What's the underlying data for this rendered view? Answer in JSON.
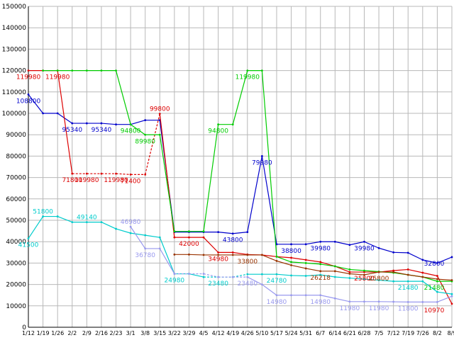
{
  "chart_data": {
    "type": "line",
    "title": "",
    "xlabel": "",
    "ylabel": "",
    "ylim": [
      0,
      150000
    ],
    "y_tick_step": 10000,
    "grid": true,
    "grid_color": "#b8b8b8",
    "axis_color": "#000000",
    "background_color": "#ffffff",
    "x_tick_labels": [
      "1/12",
      "1/19",
      "1/26",
      "2/2",
      "2/9",
      "2/16",
      "2/23",
      "3/1",
      "3/8",
      "3/15",
      "3/22",
      "3/29",
      "4/5",
      "4/12",
      "4/19",
      "4/26",
      "5/10",
      "5/17",
      "5/24",
      "5/31",
      "6/7",
      "6/14",
      "6/21",
      "6/28",
      "7/5",
      "7/12",
      "7/19",
      "7/26",
      "8/2",
      "8/9"
    ],
    "series": [
      {
        "name": "series-blue",
        "color": "#0000cc",
        "dash_ranges": [],
        "values": [
          108800,
          100000,
          100000,
          95340,
          95340,
          95340,
          94800,
          94800,
          96800,
          96800,
          44500,
          44500,
          44500,
          44500,
          43800,
          44500,
          79980,
          38800,
          38800,
          38800,
          39980,
          39980,
          38500,
          39980,
          37000,
          35000,
          34800,
          31500,
          30000,
          32800
        ]
      },
      {
        "name": "series-red",
        "color": "#dd0000",
        "dash_ranges": [
          [
            3,
            9
          ]
        ],
        "values": [
          119980,
          119980,
          119980,
          71800,
          71800,
          71800,
          71800,
          71400,
          71400,
          99800,
          42000,
          42000,
          42000,
          34980,
          34980,
          34000,
          33800,
          33000,
          32500,
          31500,
          30500,
          28500,
          25800,
          25800,
          25800,
          26500,
          27000,
          25500,
          24000,
          10970
        ]
      },
      {
        "name": "series-green",
        "color": "#00cc00",
        "dash_ranges": [],
        "values": [
          null,
          119980,
          119980,
          119980,
          119980,
          119980,
          119980,
          94800,
          89980,
          89980,
          44800,
          44800,
          44800,
          94800,
          94800,
          119980,
          119980,
          33000,
          30500,
          30000,
          29500,
          28500,
          27000,
          26500,
          26000,
          25500,
          24500,
          23500,
          21480,
          21480
        ]
      },
      {
        "name": "series-cyan",
        "color": "#00cccc",
        "dash_ranges": [
          [
            12,
            15
          ]
        ],
        "values": [
          41500,
          51800,
          51800,
          49140,
          49140,
          49140,
          46000,
          44000,
          43000,
          42000,
          24980,
          24980,
          23480,
          23480,
          23480,
          24780,
          24780,
          24780,
          24200,
          24000,
          24500,
          23500,
          23000,
          22500,
          22000,
          21480,
          21480,
          21480,
          16500,
          15500
        ]
      },
      {
        "name": "series-purple",
        "color": "#9999ee",
        "dash_ranges": [
          [
            10,
            15
          ]
        ],
        "values": [
          null,
          null,
          null,
          null,
          null,
          null,
          null,
          46980,
          36780,
          36780,
          24980,
          24980,
          24980,
          23480,
          23480,
          23480,
          20000,
          14980,
          14980,
          14980,
          14980,
          13500,
          11980,
          11980,
          11980,
          11900,
          11800,
          11800,
          11800,
          14500
        ]
      },
      {
        "name": "series-darkred",
        "color": "#993300",
        "dash_ranges": [],
        "values": [
          null,
          null,
          null,
          null,
          null,
          null,
          null,
          null,
          null,
          null,
          34000,
          34000,
          33800,
          33800,
          33800,
          33800,
          33800,
          31000,
          29000,
          27500,
          26218,
          26218,
          25000,
          24500,
          25800,
          25800,
          24500,
          23500,
          22500,
          22000
        ]
      }
    ],
    "point_labels": [
      {
        "text": "108800",
        "s": 0,
        "i": 0,
        "pos": "below"
      },
      {
        "text": "119980",
        "s": 1,
        "i": 0,
        "pos": "below"
      },
      {
        "text": "119980",
        "s": 1,
        "i": 2,
        "pos": "below"
      },
      {
        "text": "119980",
        "s": 1,
        "i": 4,
        "pos": "below"
      },
      {
        "text": "119980",
        "s": 1,
        "i": 6,
        "pos": "below"
      },
      {
        "text": "95340",
        "s": 0,
        "i": 3,
        "pos": "below"
      },
      {
        "text": "95340",
        "s": 0,
        "i": 5,
        "pos": "below"
      },
      {
        "text": "94800",
        "s": 2,
        "i": 7,
        "pos": "below"
      },
      {
        "text": "89980",
        "s": 2,
        "i": 8,
        "pos": "below"
      },
      {
        "text": "99800",
        "s": 1,
        "i": 9,
        "pos": "above"
      },
      {
        "text": "71800",
        "s": 1,
        "i": 3,
        "pos": "below"
      },
      {
        "text": "71400",
        "s": 1,
        "i": 7,
        "pos": "below"
      },
      {
        "text": "94800",
        "s": 2,
        "i": 13,
        "pos": "below"
      },
      {
        "text": "119980",
        "s": 2,
        "i": 15,
        "pos": "below"
      },
      {
        "text": "79980",
        "s": 0,
        "i": 16,
        "pos": "below"
      },
      {
        "text": "43800",
        "s": 0,
        "i": 14,
        "pos": "below"
      },
      {
        "text": "42000",
        "s": 1,
        "i": 11,
        "pos": "below"
      },
      {
        "text": "41500",
        "s": 3,
        "i": 0,
        "pos": "below"
      },
      {
        "text": "51800",
        "s": 3,
        "i": 1,
        "pos": "above"
      },
      {
        "text": "49140",
        "s": 3,
        "i": 4,
        "pos": "above"
      },
      {
        "text": "46980",
        "s": 4,
        "i": 7,
        "pos": "above"
      },
      {
        "text": "36780",
        "s": 4,
        "i": 8,
        "pos": "below"
      },
      {
        "text": "24980",
        "s": 3,
        "i": 10,
        "pos": "below"
      },
      {
        "text": "34980",
        "s": 1,
        "i": 13,
        "pos": "below"
      },
      {
        "text": "33800",
        "s": 5,
        "i": 15,
        "pos": "below"
      },
      {
        "text": "23480",
        "s": 3,
        "i": 13,
        "pos": "below"
      },
      {
        "text": "23480",
        "s": 4,
        "i": 15,
        "pos": "below"
      },
      {
        "text": "38800",
        "s": 0,
        "i": 18,
        "pos": "below"
      },
      {
        "text": "24780",
        "s": 3,
        "i": 17,
        "pos": "below"
      },
      {
        "text": "14980",
        "s": 4,
        "i": 17,
        "pos": "below"
      },
      {
        "text": "39980",
        "s": 0,
        "i": 20,
        "pos": "below"
      },
      {
        "text": "26218",
        "s": 5,
        "i": 20,
        "pos": "below"
      },
      {
        "text": "14980",
        "s": 4,
        "i": 20,
        "pos": "below"
      },
      {
        "text": "39980",
        "s": 0,
        "i": 23,
        "pos": "below"
      },
      {
        "text": "25800",
        "s": 1,
        "i": 23,
        "pos": "below"
      },
      {
        "text": "11980",
        "s": 4,
        "i": 22,
        "pos": "below"
      },
      {
        "text": "25800",
        "s": 5,
        "i": 24,
        "pos": "below"
      },
      {
        "text": "11980",
        "s": 4,
        "i": 24,
        "pos": "below"
      },
      {
        "text": "21480",
        "s": 3,
        "i": 26,
        "pos": "below"
      },
      {
        "text": "11800",
        "s": 4,
        "i": 26,
        "pos": "below"
      },
      {
        "text": "32800",
        "s": 0,
        "i": 29,
        "pos": "below"
      },
      {
        "text": "21480",
        "s": 2,
        "i": 29,
        "pos": "below"
      },
      {
        "text": "10970",
        "s": 1,
        "i": 29,
        "pos": "below"
      }
    ]
  }
}
